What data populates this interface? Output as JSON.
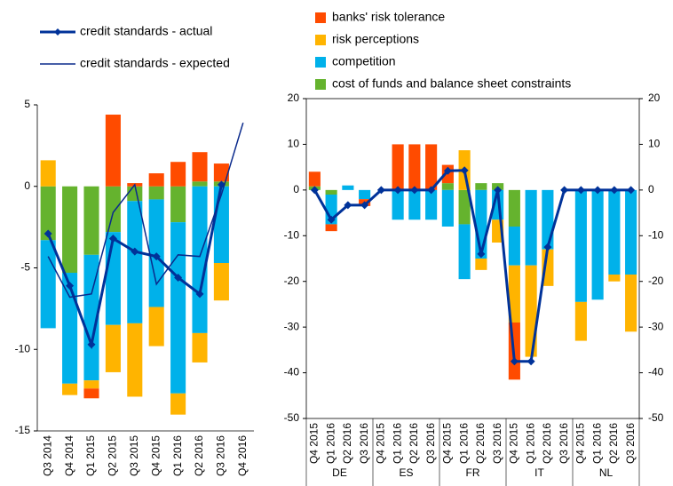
{
  "chart_data": [
    {
      "type": "bar",
      "categories": [
        "Q3 2014",
        "Q4 2014",
        "Q1 2015",
        "Q2 2015",
        "Q3 2015",
        "Q4 2015",
        "Q1 2016",
        "Q2 2016",
        "Q3 2016",
        "Q4 2016"
      ],
      "ylim": [
        -15,
        5
      ],
      "yticks": [
        -15,
        -10,
        -5,
        0,
        5
      ],
      "series": [
        {
          "name": "banks' risk tolerance",
          "color": "#ff4b00",
          "values": [
            0,
            0,
            -0.6,
            4.4,
            0.2,
            0.8,
            1.5,
            1.8,
            1.1,
            0
          ]
        },
        {
          "name": "risk perceptions",
          "color": "#ffb400",
          "values": [
            1.6,
            -0.7,
            -0.5,
            -2.9,
            -4.5,
            -2.4,
            -1.3,
            -1.8,
            -2.3,
            0
          ]
        },
        {
          "name": "competition",
          "color": "#00b1ea",
          "values": [
            -5.4,
            -6.8,
            -7.7,
            -5.7,
            -7.5,
            -6.6,
            -10.5,
            -9.0,
            -4.7,
            0
          ]
        },
        {
          "name": "cost of funds and balance sheet constraints",
          "color": "#65b32e",
          "values": [
            -3.3,
            -5.3,
            -4.2,
            -2.8,
            -0.9,
            -0.8,
            -2.2,
            0.3,
            0.3,
            0
          ]
        }
      ],
      "lines": [
        {
          "name": "credit standards - actual",
          "color": "#003299",
          "marker": true,
          "values": [
            -2.9,
            -6.1,
            -9.7,
            -3.2,
            -4.0,
            -4.3,
            -5.6,
            -6.6,
            0.1,
            null
          ]
        },
        {
          "name": "credit standards - expected",
          "color": "#0a2a8c",
          "marker": false,
          "values": [
            -4.3,
            -6.8,
            -6.6,
            -1.6,
            0.1,
            -6.0,
            -4.2,
            -4.3,
            -0.5,
            3.9
          ]
        }
      ]
    },
    {
      "type": "bar",
      "categories": [
        "Q4 2015",
        "Q1 2016",
        "Q2 2016",
        "Q3 2016",
        "Q4 2015",
        "Q1 2016",
        "Q2 2016",
        "Q3 2016",
        "Q4 2015",
        "Q1 2016",
        "Q2 2016",
        "Q3 2016",
        "Q4 2015",
        "Q1 2016",
        "Q2 2016",
        "Q3 2016",
        "Q4 2015",
        "Q1 2016",
        "Q2 2016",
        "Q3 2016"
      ],
      "groups": [
        "DE",
        "ES",
        "FR",
        "IT",
        "NL"
      ],
      "ylim": [
        -50,
        20
      ],
      "yticks": [
        -50,
        -40,
        -30,
        -20,
        -10,
        0,
        10,
        20
      ],
      "series": [
        {
          "name": "banks' risk tolerance",
          "color": "#ff4b00",
          "values": [
            3.2,
            -1.5,
            0,
            -1.5,
            0,
            10,
            10,
            10,
            4.0,
            0,
            0,
            0,
            -12.5,
            0,
            0,
            0,
            0,
            0,
            0,
            0
          ]
        },
        {
          "name": "risk perceptions",
          "color": "#ffb400",
          "values": [
            0,
            0,
            0,
            0,
            0,
            0,
            0,
            0,
            0,
            8.7,
            -2.5,
            -5.0,
            -12.5,
            -20,
            -8,
            0,
            -8.5,
            0,
            -1.5,
            -12.5
          ]
        },
        {
          "name": "competition",
          "color": "#00b1ea",
          "values": [
            0,
            -6.5,
            1.0,
            -2.0,
            0,
            -6.5,
            -6.5,
            -6.5,
            -8.0,
            -12.0,
            -15.0,
            -6.5,
            -8.5,
            -16.5,
            -13,
            0,
            -24.5,
            -24.0,
            -18.5,
            -18.5
          ]
        },
        {
          "name": "cost of funds and balance sheet constraints",
          "color": "#65b32e",
          "values": [
            0.8,
            -1.0,
            0,
            0,
            0,
            0,
            0,
            0,
            1.5,
            -7.5,
            1.5,
            1.5,
            -8,
            0,
            0,
            0,
            0,
            0,
            0,
            0
          ]
        }
      ],
      "lines": [
        {
          "name": "credit standards - actual",
          "color": "#003299",
          "marker": true,
          "values": [
            0,
            -6.5,
            -3.3,
            -3.3,
            0,
            0,
            0,
            0,
            4.2,
            4.3,
            -14,
            0,
            -37.5,
            -37.5,
            -12.5,
            0,
            0,
            0,
            0,
            0
          ]
        }
      ]
    }
  ]
}
